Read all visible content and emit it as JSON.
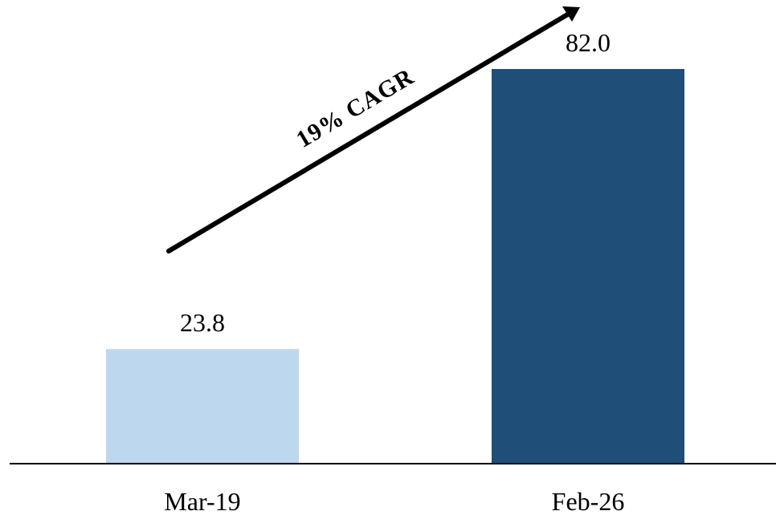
{
  "chart_data": {
    "type": "bar",
    "categories": [
      "Mar-19",
      "Feb-26"
    ],
    "values": [
      23.8,
      82.0
    ],
    "value_labels": [
      "23.8",
      "82.0"
    ],
    "bar_colors": [
      "#BDD7EE",
      "#1F4E79"
    ],
    "title": "",
    "xlabel": "",
    "ylabel": "",
    "ylim": [
      0,
      82.0
    ],
    "grid": false,
    "legend": "none",
    "annotation": {
      "text": "19% CAGR",
      "type": "arrow",
      "from_category": "Mar-19",
      "to_category": "Feb-26"
    }
  },
  "colors": {
    "axis": "#000000",
    "arrow": "#000000"
  }
}
